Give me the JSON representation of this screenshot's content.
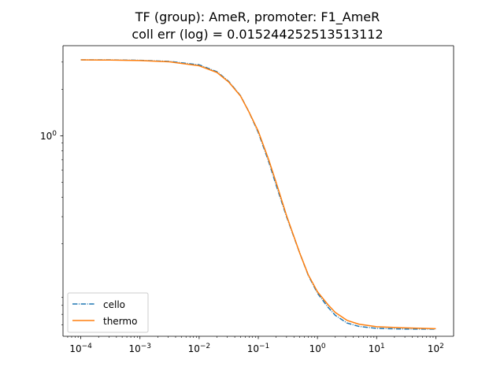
{
  "chart_data": {
    "type": "line",
    "title": "TF (group): AmeR, promoter: F1_AmeR",
    "subtitle": "coll err (log) = 0.015244252513513112",
    "xlabel": "",
    "ylabel": "",
    "xscale": "log",
    "yscale": "log",
    "xlim": [
      5e-05,
      200
    ],
    "ylim": [
      0.0505,
      3.83
    ],
    "grid": false,
    "legend_position": "lower-left",
    "x_ticks": [
      {
        "value": 0.0001,
        "label": "10",
        "exp": "−4"
      },
      {
        "value": 0.001,
        "label": "10",
        "exp": "−3"
      },
      {
        "value": 0.01,
        "label": "10",
        "exp": "−2"
      },
      {
        "value": 0.1,
        "label": "10",
        "exp": "−1"
      },
      {
        "value": 1,
        "label": "10",
        "exp": "0"
      },
      {
        "value": 10,
        "label": "10",
        "exp": "1"
      },
      {
        "value": 100,
        "label": "10",
        "exp": "2"
      }
    ],
    "y_ticks": [
      {
        "value": 1,
        "label": "10",
        "exp": "0"
      }
    ],
    "x": [
      0.0001,
      0.000316,
      0.001,
      0.00316,
      0.01,
      0.02,
      0.0316,
      0.05,
      0.07,
      0.1,
      0.15,
      0.2,
      0.3,
      0.5,
      0.7,
      1,
      1.5,
      2,
      3.16,
      5,
      10,
      31.6,
      100
    ],
    "series": [
      {
        "name": "cello",
        "color": "#1f77b4",
        "style": "dashdot",
        "values": [
          3.1,
          3.1,
          3.08,
          3.03,
          2.88,
          2.6,
          2.25,
          1.82,
          1.42,
          1.05,
          0.68,
          0.48,
          0.3,
          0.175,
          0.125,
          0.096,
          0.078,
          0.069,
          0.0615,
          0.0585,
          0.0568,
          0.0562,
          0.0562
        ]
      },
      {
        "name": "thermo",
        "color": "#ff7f0e",
        "style": "solid",
        "values": [
          3.1,
          3.09,
          3.07,
          3.01,
          2.84,
          2.57,
          2.23,
          1.81,
          1.42,
          1.07,
          0.7,
          0.5,
          0.305,
          0.175,
          0.126,
          0.098,
          0.081,
          0.072,
          0.064,
          0.0605,
          0.0582,
          0.0572,
          0.0565
        ]
      }
    ]
  }
}
